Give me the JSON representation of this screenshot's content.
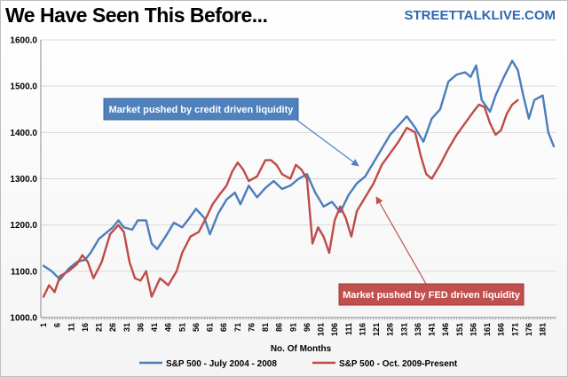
{
  "header": {
    "title": "We Have Seen This Before...",
    "brand": "STREETTALKLIVE.COM"
  },
  "colors": {
    "series_blue": "#4a7ebb",
    "series_red": "#be4b48",
    "ann_blue": "#4f81bd",
    "ann_red": "#c0504d"
  },
  "chart_data": {
    "type": "line",
    "title": "We Have Seen This Before...",
    "xlabel": "No. Of Months",
    "ylabel": "",
    "xlim": [
      1,
      185
    ],
    "ylim": [
      1000,
      1600
    ],
    "yticks": [
      1000,
      1100,
      1200,
      1300,
      1400,
      1500,
      1600
    ],
    "ytick_labels": [
      "1000.0",
      "1100.0",
      "1200.0",
      "1300.0",
      "1400.0",
      "1500.0",
      "1600.0"
    ],
    "xticks": [
      1,
      6,
      11,
      16,
      21,
      26,
      31,
      36,
      41,
      46,
      51,
      56,
      61,
      66,
      71,
      76,
      81,
      86,
      91,
      96,
      101,
      106,
      111,
      116,
      121,
      126,
      131,
      136,
      141,
      146,
      151,
      156,
      161,
      166,
      171,
      176,
      181
    ],
    "grid": "horizontal",
    "legend_position": "bottom",
    "series": [
      {
        "name": "S&P 500 - July 2004 - 2008",
        "color": "#4a7ebb",
        "points": [
          [
            1,
            1112
          ],
          [
            4,
            1100
          ],
          [
            7,
            1082
          ],
          [
            10,
            1105
          ],
          [
            13,
            1120
          ],
          [
            16,
            1125
          ],
          [
            18,
            1140
          ],
          [
            21,
            1170
          ],
          [
            23,
            1180
          ],
          [
            26,
            1195
          ],
          [
            28,
            1210
          ],
          [
            30,
            1195
          ],
          [
            33,
            1190
          ],
          [
            35,
            1210
          ],
          [
            38,
            1210
          ],
          [
            40,
            1160
          ],
          [
            42,
            1148
          ],
          [
            45,
            1175
          ],
          [
            48,
            1205
          ],
          [
            51,
            1195
          ],
          [
            53,
            1210
          ],
          [
            56,
            1235
          ],
          [
            59,
            1215
          ],
          [
            61,
            1180
          ],
          [
            64,
            1225
          ],
          [
            67,
            1255
          ],
          [
            70,
            1270
          ],
          [
            72,
            1245
          ],
          [
            75,
            1285
          ],
          [
            78,
            1260
          ],
          [
            81,
            1280
          ],
          [
            84,
            1295
          ],
          [
            87,
            1278
          ],
          [
            90,
            1285
          ],
          [
            93,
            1300
          ],
          [
            96,
            1310
          ],
          [
            99,
            1270
          ],
          [
            102,
            1240
          ],
          [
            105,
            1250
          ],
          [
            108,
            1228
          ],
          [
            111,
            1265
          ],
          [
            114,
            1290
          ],
          [
            117,
            1305
          ],
          [
            120,
            1335
          ],
          [
            123,
            1365
          ],
          [
            126,
            1395
          ],
          [
            129,
            1415
          ],
          [
            132,
            1435
          ],
          [
            135,
            1410
          ],
          [
            138,
            1380
          ],
          [
            141,
            1430
          ],
          [
            144,
            1450
          ],
          [
            147,
            1510
          ],
          [
            150,
            1525
          ],
          [
            153,
            1530
          ],
          [
            155,
            1520
          ],
          [
            157,
            1545
          ],
          [
            159,
            1470
          ],
          [
            162,
            1445
          ],
          [
            164,
            1480
          ],
          [
            167,
            1520
          ],
          [
            170,
            1555
          ],
          [
            172,
            1535
          ],
          [
            174,
            1480
          ],
          [
            176,
            1430
          ],
          [
            178,
            1470
          ],
          [
            181,
            1480
          ],
          [
            183,
            1400
          ],
          [
            185,
            1370
          ]
        ]
      },
      {
        "name": "S&P 500 - Oct. 2009-Present",
        "color": "#be4b48",
        "points": [
          [
            1,
            1045
          ],
          [
            3,
            1070
          ],
          [
            5,
            1055
          ],
          [
            7,
            1090
          ],
          [
            10,
            1100
          ],
          [
            13,
            1115
          ],
          [
            15,
            1135
          ],
          [
            17,
            1120
          ],
          [
            19,
            1085
          ],
          [
            22,
            1120
          ],
          [
            25,
            1180
          ],
          [
            28,
            1200
          ],
          [
            30,
            1185
          ],
          [
            32,
            1120
          ],
          [
            34,
            1085
          ],
          [
            36,
            1080
          ],
          [
            38,
            1100
          ],
          [
            40,
            1045
          ],
          [
            43,
            1085
          ],
          [
            46,
            1070
          ],
          [
            49,
            1100
          ],
          [
            51,
            1140
          ],
          [
            54,
            1175
          ],
          [
            57,
            1185
          ],
          [
            60,
            1220
          ],
          [
            62,
            1245
          ],
          [
            65,
            1270
          ],
          [
            67,
            1285
          ],
          [
            69,
            1315
          ],
          [
            71,
            1335
          ],
          [
            73,
            1320
          ],
          [
            75,
            1295
          ],
          [
            78,
            1305
          ],
          [
            81,
            1340
          ],
          [
            83,
            1340
          ],
          [
            85,
            1330
          ],
          [
            87,
            1310
          ],
          [
            90,
            1300
          ],
          [
            92,
            1330
          ],
          [
            94,
            1320
          ],
          [
            96,
            1300
          ],
          [
            98,
            1160
          ],
          [
            100,
            1195
          ],
          [
            102,
            1175
          ],
          [
            104,
            1140
          ],
          [
            106,
            1210
          ],
          [
            108,
            1240
          ],
          [
            110,
            1215
          ],
          [
            112,
            1175
          ],
          [
            114,
            1230
          ],
          [
            117,
            1260
          ],
          [
            120,
            1290
          ],
          [
            123,
            1330
          ],
          [
            126,
            1355
          ],
          [
            129,
            1380
          ],
          [
            132,
            1410
          ],
          [
            135,
            1400
          ],
          [
            137,
            1350
          ],
          [
            139,
            1310
          ],
          [
            141,
            1300
          ],
          [
            144,
            1330
          ],
          [
            147,
            1365
          ],
          [
            150,
            1395
          ],
          [
            153,
            1420
          ],
          [
            156,
            1445
          ],
          [
            158,
            1460
          ],
          [
            160,
            1455
          ],
          [
            162,
            1420
          ],
          [
            164,
            1395
          ],
          [
            166,
            1405
          ],
          [
            168,
            1440
          ],
          [
            170,
            1460
          ],
          [
            172,
            1470
          ]
        ]
      }
    ],
    "annotations": [
      {
        "text": "Market pushed by credit driven liquidity",
        "color": "#4f81bd"
      },
      {
        "text": "Market pushed by FED driven liquidity",
        "color": "#c0504d"
      }
    ]
  }
}
